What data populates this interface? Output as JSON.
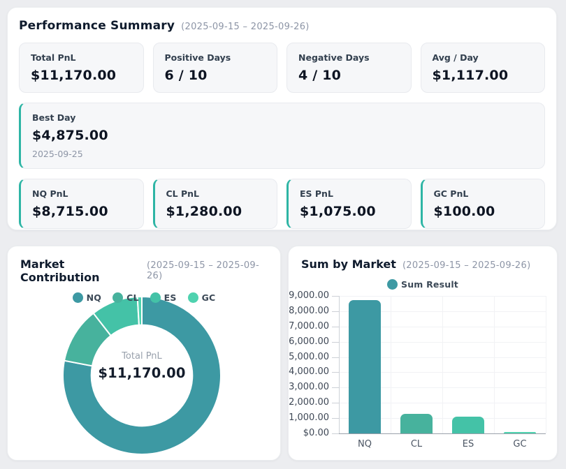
{
  "performance": {
    "title": "Performance Summary",
    "range": "(2025-09-15 – 2025-09-26)",
    "stats": [
      {
        "label": "Total PnL",
        "value": "$11,170.00"
      },
      {
        "label": "Positive Days",
        "value": "6 / 10"
      },
      {
        "label": "Negative Days",
        "value": "4 / 10"
      },
      {
        "label": "Avg / Day",
        "value": "$1,117.00"
      }
    ],
    "best_day": {
      "label": "Best Day",
      "value": "$4,875.00",
      "date": "2025-09-25"
    },
    "markets": [
      {
        "label": "NQ PnL",
        "value": "$8,715.00"
      },
      {
        "label": "CL PnL",
        "value": "$1,280.00"
      },
      {
        "label": "ES PnL",
        "value": "$1,075.00"
      },
      {
        "label": "GC PnL",
        "value": "$100.00"
      }
    ]
  },
  "contribution": {
    "title": "Market Contribution",
    "range": "(2025-09-15 – 2025-09-26)"
  },
  "sum_by_market": {
    "title": "Sum by Market",
    "range": "(2025-09-15 – 2025-09-26)"
  },
  "colors": {
    "palette": [
      "#3D99A3",
      "#47B29D",
      "#44C2A7",
      "#4FD2AF"
    ],
    "accent": "#2EB5A5",
    "axis": "#CED2D8",
    "baseline": "#9AA1AB",
    "grid": "#F1F2F5",
    "tick": "#CCD0D6"
  },
  "chart_data": [
    {
      "type": "pie",
      "title": "Market Contribution",
      "labels": [
        "NQ",
        "CL",
        "ES",
        "GC"
      ],
      "values": [
        8715,
        1280,
        1075,
        100
      ],
      "colors": [
        "#3D99A3",
        "#47B29D",
        "#44C2A7",
        "#4FD2AF"
      ],
      "center": {
        "label": "Total PnL",
        "value": "$11,170.00"
      },
      "inner_radius_ratio": 0.64,
      "legend_position": "top"
    },
    {
      "type": "bar",
      "title": "Sum by Market",
      "categories": [
        "NQ",
        "CL",
        "ES",
        "GC"
      ],
      "series": [
        {
          "name": "Sum Result",
          "values": [
            8715,
            1280,
            1075,
            100
          ]
        }
      ],
      "colors": [
        "#3D99A3",
        "#47B29D",
        "#44C2A7",
        "#4FD2AF"
      ],
      "ylim": [
        0,
        9000
      ],
      "ytick_step": 1000,
      "tick_prefix": "$",
      "grid": true,
      "legend": [
        "Sum Result"
      ],
      "legend_position": "top"
    }
  ]
}
